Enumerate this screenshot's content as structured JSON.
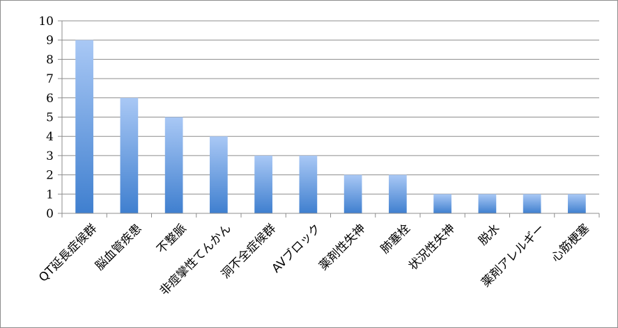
{
  "chart_data": {
    "type": "bar",
    "title": "",
    "xlabel": "",
    "ylabel": "",
    "ylim": [
      0,
      10
    ],
    "yticks": [
      0,
      1,
      2,
      3,
      4,
      5,
      6,
      7,
      8,
      9,
      10
    ],
    "grid": true,
    "legend": "none",
    "bar_color_top": "#a9c8f5",
    "bar_color_bottom": "#3f7fcf",
    "categories": [
      "QT延長症候群",
      "脳血管疾患",
      "不整脈",
      "非痙攣性てんかん",
      "洞不全症候群",
      "AVブロック",
      "薬剤性失神",
      "肺塞栓",
      "状況性失神",
      "脱水",
      "薬剤アレルギー",
      "心筋梗塞"
    ],
    "values": [
      9,
      6,
      5,
      4,
      3,
      3,
      2,
      2,
      1,
      1,
      1,
      1
    ]
  }
}
